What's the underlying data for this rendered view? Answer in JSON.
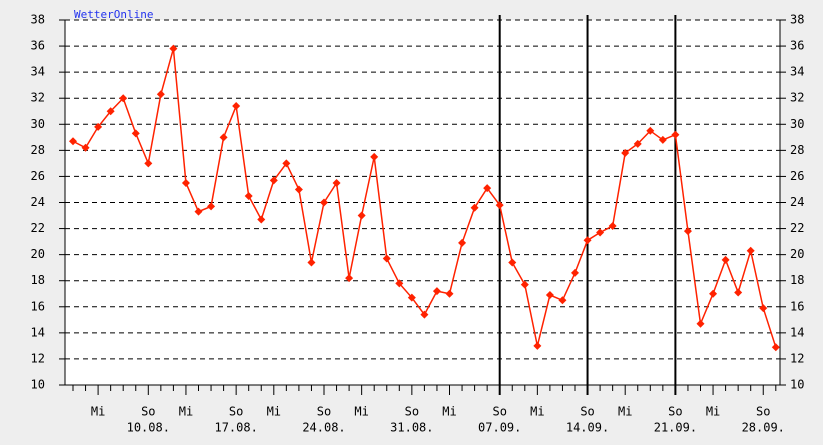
{
  "chart_data": {
    "type": "line",
    "brand": "WetterOnline",
    "categories": [
      null,
      null,
      "Mi",
      null,
      null,
      null,
      "So",
      null,
      null,
      "Mi",
      null,
      null,
      null,
      "So",
      null,
      null,
      "Mi",
      null,
      null,
      null,
      "So",
      null,
      null,
      "Mi",
      null,
      null,
      null,
      "So",
      null,
      null,
      "Mi",
      null,
      null,
      null,
      "So",
      null,
      null,
      "Mi",
      null,
      null,
      null,
      "So",
      null,
      null,
      "Mi",
      null,
      null,
      null,
      "So",
      null,
      null,
      "Mi",
      null,
      null,
      null,
      "So",
      null
    ],
    "date_labels": [
      null,
      null,
      null,
      null,
      null,
      null,
      "10.08.",
      null,
      null,
      null,
      null,
      null,
      null,
      "17.08.",
      null,
      null,
      null,
      null,
      null,
      null,
      "24.08.",
      null,
      null,
      null,
      null,
      null,
      null,
      "31.08.",
      null,
      null,
      null,
      null,
      null,
      null,
      "07.09.",
      null,
      null,
      null,
      null,
      null,
      null,
      "14.09.",
      null,
      null,
      null,
      null,
      null,
      null,
      "21.09.",
      null,
      null,
      null,
      null,
      null,
      null,
      "28.09.",
      null
    ],
    "series": [
      {
        "name": null,
        "color": "#ff2200",
        "values": [
          28.7,
          28.2,
          29.8,
          31,
          32,
          29.3,
          27,
          32.3,
          35.8,
          25.5,
          23.3,
          23.7,
          29,
          31.4,
          24.5,
          22.7,
          25.7,
          27,
          25,
          19.4,
          24,
          25.5,
          18.2,
          23,
          27.5,
          19.7,
          17.8,
          16.7,
          15.4,
          17.2,
          17,
          20.9,
          23.6,
          25.1,
          23.8,
          19.4,
          17.7,
          13,
          16.9,
          16.5,
          18.6,
          21.1,
          21.7,
          22.2,
          27.8,
          28.5,
          29.5,
          28.8,
          29.2,
          21.8,
          14.7,
          17,
          19.6,
          17.1,
          20.3,
          15.9,
          12.9
        ]
      }
    ],
    "ylim": [
      10,
      38
    ],
    "yticks": [
      10,
      12,
      14,
      16,
      18,
      20,
      22,
      24,
      26,
      28,
      30,
      32,
      34,
      36,
      38
    ],
    "grid": true
  }
}
